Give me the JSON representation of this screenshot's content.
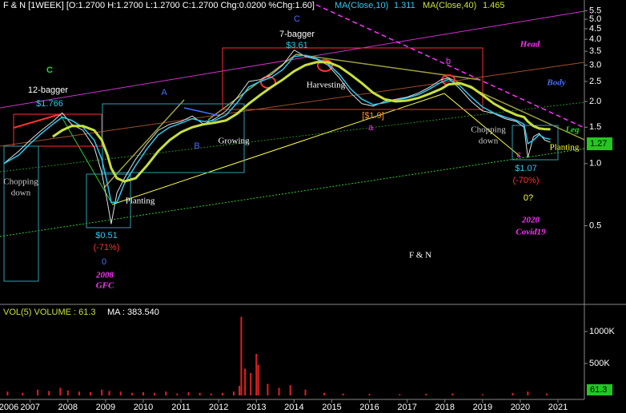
{
  "chart_data": [
    {
      "type": "line",
      "header": "F & N [1WEEK] [O:1.2700 H:1.2700 L:1.2700 C:1.2700 Chg:0.0200 %Chg:1.60]",
      "log_scale": true,
      "xlim": [
        2006.2,
        2021.7
      ],
      "ylim": [
        0.21,
        6.2
      ],
      "yticks": [
        5.5,
        {
          "value": 5,
          "label": "5.0"
        },
        4.5,
        {
          "value": 4,
          "label": "4.0"
        },
        3.5,
        {
          "value": 3,
          "label": "3.0"
        },
        2.5,
        {
          "value": 2,
          "label": "2.0"
        },
        1.5,
        {
          "value": 1,
          "label": "1.0"
        },
        0.5
      ],
      "last_price_label": "1.27",
      "x": [
        2006.3,
        2006.7,
        2007.0,
        2007.3,
        2007.6,
        2007.85,
        2008.1,
        2008.4,
        2008.7,
        2008.9,
        2009.05,
        2009.15,
        2009.3,
        2009.5,
        2009.8,
        2010.1,
        2010.4,
        2010.7,
        2011.0,
        2011.3,
        2011.6,
        2011.9,
        2012.2,
        2012.5,
        2012.8,
        2013.1,
        2013.4,
        2013.7,
        2014.0,
        2014.3,
        2014.6,
        2014.9,
        2015.2,
        2015.5,
        2015.8,
        2016.1,
        2016.4,
        2016.7,
        2017.0,
        2017.3,
        2017.6,
        2017.9,
        2018.1,
        2018.4,
        2018.7,
        2019.0,
        2019.3,
        2019.6,
        2019.9,
        2020.1,
        2020.2,
        2020.35,
        2020.5,
        2020.65,
        2020.8
      ],
      "series": [
        {
          "color": "#e0e0e0",
          "values": [
            1.0,
            1.15,
            1.3,
            1.45,
            1.6,
            1.76,
            1.55,
            1.45,
            1.2,
            0.9,
            0.65,
            0.51,
            0.72,
            0.85,
            1.05,
            1.25,
            1.45,
            1.55,
            1.6,
            1.7,
            1.55,
            1.65,
            1.8,
            2.1,
            2.5,
            2.55,
            2.7,
            3.0,
            3.55,
            3.3,
            3.2,
            3.0,
            2.6,
            2.2,
            1.95,
            1.9,
            2.0,
            2.05,
            2.1,
            2.2,
            2.35,
            2.55,
            2.6,
            2.3,
            2.0,
            1.8,
            1.75,
            1.65,
            1.6,
            1.5,
            1.07,
            1.35,
            1.4,
            1.3,
            1.27
          ]
        },
        {
          "name": "MA(Close,10)",
          "color": "#2ec8f0",
          "values": [
            1.0,
            1.1,
            1.25,
            1.4,
            1.55,
            1.68,
            1.62,
            1.5,
            1.3,
            1.05,
            0.8,
            0.65,
            0.65,
            0.8,
            0.98,
            1.18,
            1.38,
            1.5,
            1.57,
            1.65,
            1.6,
            1.62,
            1.72,
            1.98,
            2.35,
            2.5,
            2.62,
            2.85,
            3.3,
            3.35,
            3.22,
            3.05,
            2.7,
            2.3,
            2.05,
            1.93,
            1.97,
            2.03,
            2.08,
            2.16,
            2.3,
            2.48,
            2.56,
            2.38,
            2.1,
            1.88,
            1.76,
            1.68,
            1.62,
            1.55,
            1.25,
            1.3,
            1.38,
            1.33,
            1.311
          ]
        },
        {
          "name": "MA(Close,40)",
          "color": "#c8e03c",
          "values": [
            null,
            null,
            null,
            null,
            1.35,
            1.45,
            1.52,
            1.52,
            1.45,
            1.3,
            1.1,
            0.95,
            0.85,
            0.82,
            0.85,
            0.98,
            1.15,
            1.3,
            1.42,
            1.5,
            1.55,
            1.58,
            1.62,
            1.75,
            1.95,
            2.15,
            2.35,
            2.55,
            2.8,
            3.0,
            3.1,
            3.1,
            2.95,
            2.7,
            2.45,
            2.2,
            2.05,
            2.0,
            2.02,
            2.08,
            2.18,
            2.3,
            2.42,
            2.45,
            2.35,
            2.15,
            1.95,
            1.82,
            1.72,
            1.68,
            1.6,
            1.52,
            1.48,
            1.47,
            1.465
          ]
        }
      ],
      "annotations": [
        {
          "text": "C",
          "color": "#22dd22"
        },
        {
          "text": "12-bagger",
          "color": "#ffffff"
        },
        {
          "text": "$1.766",
          "color": "#2ec8f0"
        },
        {
          "text": "Chopping",
          "color": "#cccccc"
        },
        {
          "text": "down",
          "color": "#cccccc"
        },
        {
          "text": "Planting",
          "color": "#ffffff"
        },
        {
          "text": "$0.51",
          "color": "#2ec8f0"
        },
        {
          "text": "(-71%)",
          "color": "#ff3030"
        },
        {
          "text": "0",
          "color": "#4a6cff"
        },
        {
          "text": "2008",
          "color": "#ff30ff"
        },
        {
          "text": "GFC",
          "color": "#ff30ff"
        },
        {
          "text": "A",
          "color": "#4a6cff"
        },
        {
          "text": "B",
          "color": "#4a6cff"
        },
        {
          "text": "Growing",
          "color": "#ffffff"
        },
        {
          "text": "C",
          "color": "#4a6cff"
        },
        {
          "text": "7-bagger",
          "color": "#ffffff"
        },
        {
          "text": "$3.61",
          "color": "#2ec8f0"
        },
        {
          "text": "Harvesting",
          "color": "#ffffff"
        },
        {
          "text": "[$1.9]",
          "color": "#ff8c30"
        },
        {
          "text": "a",
          "color": "#ff30ff"
        },
        {
          "text": "b",
          "color": "#ff30ff"
        },
        {
          "text": "Chopping",
          "color": "#cccccc"
        },
        {
          "text": "down",
          "color": "#cccccc"
        },
        {
          "text": "c",
          "color": "#ff30ff"
        },
        {
          "text": "$1.07",
          "color": "#2ec8f0"
        },
        {
          "text": "(-70%)",
          "color": "#ff3030"
        },
        {
          "text": "0?",
          "color": "#ffff30"
        },
        {
          "text": "2020",
          "color": "#ff30ff"
        },
        {
          "text": "Covid19",
          "color": "#ff30ff"
        },
        {
          "text": "Head",
          "color": "#ff30ff"
        },
        {
          "text": "Body",
          "color": "#4a6cff"
        },
        {
          "text": "Leg",
          "color": "#22dd22"
        },
        {
          "text": "Planting",
          "color": "#ffff30"
        },
        {
          "text": "F & N",
          "color": "#ffffff"
        }
      ]
    },
    {
      "type": "bar",
      "header": "VOL(5) VOLUME : 61.3",
      "ma_label": "MA : 383.540",
      "last_label": "61.3",
      "color": "#e02020",
      "xlim": [
        2006.2,
        2021.7
      ],
      "xticks": [
        2006,
        2007,
        2008,
        2009,
        2010,
        2011,
        2012,
        2013,
        2014,
        2015,
        2016,
        2017,
        2018,
        2019,
        2020,
        2021
      ],
      "ylim": [
        0,
        1375000
      ],
      "yticks": [
        {
          "value": 500000,
          "label": "500K"
        },
        {
          "value": 1000000,
          "label": "1000K"
        }
      ],
      "x": [
        2006.4,
        2006.8,
        2007.2,
        2007.5,
        2007.8,
        2008.0,
        2008.3,
        2008.6,
        2008.9,
        2009.1,
        2009.4,
        2009.7,
        2010.0,
        2010.3,
        2010.6,
        2010.9,
        2011.2,
        2011.5,
        2011.8,
        2012.1,
        2012.4,
        2012.55,
        2012.6,
        2012.7,
        2012.85,
        2013.0,
        2013.05,
        2013.3,
        2013.6,
        2013.9,
        2014.3,
        2014.8,
        2015.3,
        2016.0,
        2016.8,
        2017.5,
        2018.2,
        2019.0,
        2019.8,
        2020.2,
        2020.7
      ],
      "values": [
        60000,
        40000,
        90000,
        70000,
        120000,
        80000,
        60000,
        50000,
        90000,
        70000,
        60000,
        40000,
        50000,
        40000,
        60000,
        30000,
        50000,
        40000,
        30000,
        40000,
        60000,
        150000,
        1230000,
        420000,
        350000,
        650000,
        480000,
        180000,
        120000,
        160000,
        90000,
        40000,
        30000,
        25000,
        20000,
        25000,
        30000,
        20000,
        40000,
        60000,
        30000
      ]
    }
  ]
}
